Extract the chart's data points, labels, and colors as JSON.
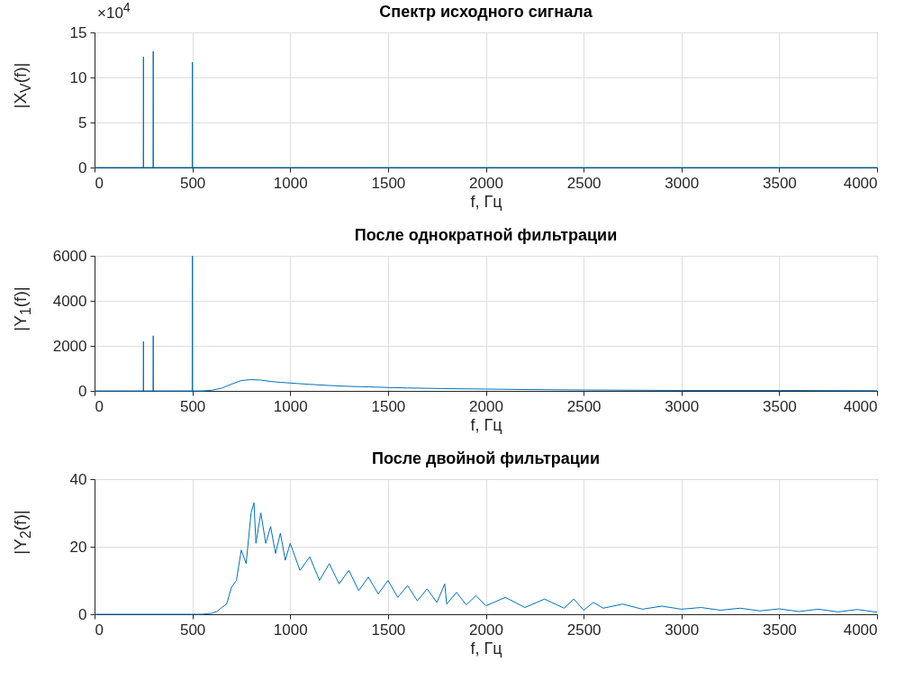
{
  "chart_data": [
    {
      "type": "line",
      "title": "Спектр исходного сигнала",
      "xlabel": "f, Гц",
      "ylabel": "|X$_{V}$(f)|",
      "annotations": [
        "×10$^{4}$"
      ],
      "xlim": [
        0,
        4000
      ],
      "xticks": [
        0,
        500,
        1000,
        1500,
        2000,
        2500,
        3000,
        3500,
        4000
      ],
      "ylim": [
        0,
        15
      ],
      "yticks": [
        0,
        5,
        10,
        15
      ],
      "grid": true,
      "series": [
        {
          "color": "#0072bd",
          "x": [
            0,
            249,
            250,
            251,
            299,
            300,
            301,
            499,
            500,
            501,
            4000
          ],
          "values": [
            0,
            0,
            12.3,
            0,
            0,
            12.9,
            0,
            0,
            11.7,
            0,
            0
          ]
        }
      ]
    },
    {
      "type": "line",
      "title": "После однократной фильтрации",
      "xlabel": "f, Гц",
      "ylabel": "|Y$_{1}$(f)|",
      "xlim": [
        0,
        4000
      ],
      "xticks": [
        0,
        500,
        1000,
        1500,
        2000,
        2500,
        3000,
        3500,
        4000
      ],
      "ylim": [
        0,
        6000
      ],
      "yticks": [
        0,
        2000,
        4000,
        6000
      ],
      "grid": true,
      "series": [
        {
          "color": "#0072bd",
          "x": [
            0,
            249,
            250,
            251,
            299,
            300,
            301,
            499,
            500,
            501,
            550,
            600,
            650,
            700,
            750,
            800,
            850,
            900,
            950,
            1000,
            1100,
            1200,
            1300,
            1400,
            1500,
            1600,
            1800,
            2000,
            2200,
            2500,
            3000,
            3500,
            4000
          ],
          "values": [
            0,
            0,
            2200,
            0,
            0,
            2450,
            0,
            0,
            6000,
            0,
            0,
            30,
            120,
            300,
            460,
            500,
            480,
            420,
            380,
            350,
            290,
            240,
            200,
            180,
            150,
            130,
            100,
            80,
            60,
            40,
            20,
            20,
            10
          ]
        }
      ]
    },
    {
      "type": "line",
      "title": "После двойной фильтрации",
      "xlabel": "f, Гц",
      "ylabel": "|Y$_{2}$(f)|",
      "xlim": [
        0,
        4000
      ],
      "xticks": [
        0,
        500,
        1000,
        1500,
        2000,
        2500,
        3000,
        3500,
        4000
      ],
      "ylim": [
        0,
        40
      ],
      "yticks": [
        0,
        20,
        40
      ],
      "grid": true,
      "series": [
        {
          "color": "#0072bd",
          "x": [
            0,
            500,
            550,
            600,
            625,
            650,
            675,
            700,
            725,
            750,
            775,
            800,
            815,
            825,
            850,
            875,
            900,
            925,
            950,
            975,
            1000,
            1050,
            1100,
            1150,
            1200,
            1250,
            1300,
            1350,
            1400,
            1450,
            1500,
            1550,
            1600,
            1650,
            1700,
            1750,
            1790,
            1800,
            1850,
            1900,
            1950,
            2000,
            2100,
            2200,
            2300,
            2400,
            2450,
            2500,
            2550,
            2600,
            2700,
            2800,
            2900,
            3000,
            3100,
            3200,
            3300,
            3400,
            3500,
            3600,
            3700,
            3800,
            3900,
            4000
          ],
          "values": [
            0,
            0,
            0,
            0.3,
            0.8,
            2,
            3,
            8,
            10,
            19,
            15,
            30,
            33,
            21,
            30,
            21,
            26,
            18,
            24,
            16,
            21,
            13,
            17,
            10,
            15,
            9,
            13,
            7,
            11,
            6,
            10,
            5,
            8.5,
            4,
            7.5,
            3.5,
            9,
            3,
            6.5,
            2.8,
            5.5,
            2.5,
            5,
            2,
            4.5,
            1.8,
            4.5,
            1.2,
            3.5,
            1.8,
            3,
            1.5,
            2.4,
            1.5,
            2,
            1.2,
            1.8,
            1,
            1.6,
            0.8,
            1.5,
            0.7,
            1.4,
            0.6
          ]
        }
      ]
    }
  ]
}
